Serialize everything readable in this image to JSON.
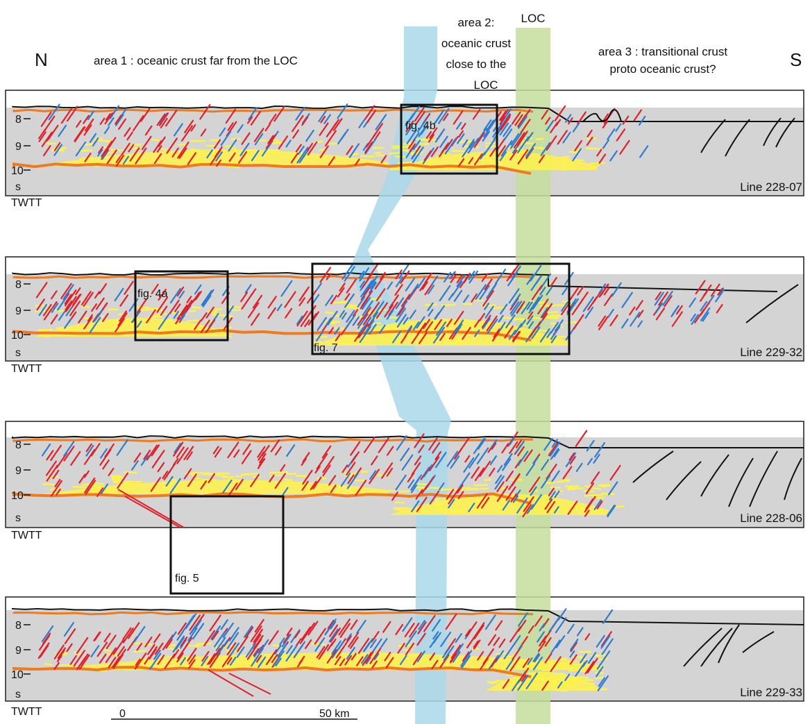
{
  "header": {
    "north": "N",
    "south": "S",
    "area1": "area 1 : oceanic crust far from the LOC",
    "area2_lines": [
      "area 2:",
      "oceanic crust",
      "close to the",
      "LOC"
    ],
    "loc": "LOC",
    "area3_lines": [
      "area 3 : transitional crust",
      "proto oceanic crust?"
    ]
  },
  "axis": {
    "ticks": [
      "8",
      "9",
      "10"
    ],
    "unit": "s",
    "name": "TWTT"
  },
  "profiles": [
    {
      "line_label": "Line 228-07",
      "boxes": [
        "fig. 4b"
      ]
    },
    {
      "line_label": "Line 229-32",
      "boxes": [
        "fig. 4a",
        "fig. 7"
      ]
    },
    {
      "line_label": "Line 228-06",
      "boxes": []
    },
    {
      "line_label": "Line 229-33",
      "boxes": [
        "fig. 5"
      ]
    }
  ],
  "scale_bar": {
    "start": "0",
    "end": "50 km"
  },
  "colors": {
    "panel": "#d4d4d4",
    "blue_zone": "#a9d8ea",
    "green_zone": "#c6dd9c",
    "orange": "#f07a1f",
    "red": "#e3202a",
    "blue": "#2f7bd0",
    "yellow": "#fff24a"
  }
}
